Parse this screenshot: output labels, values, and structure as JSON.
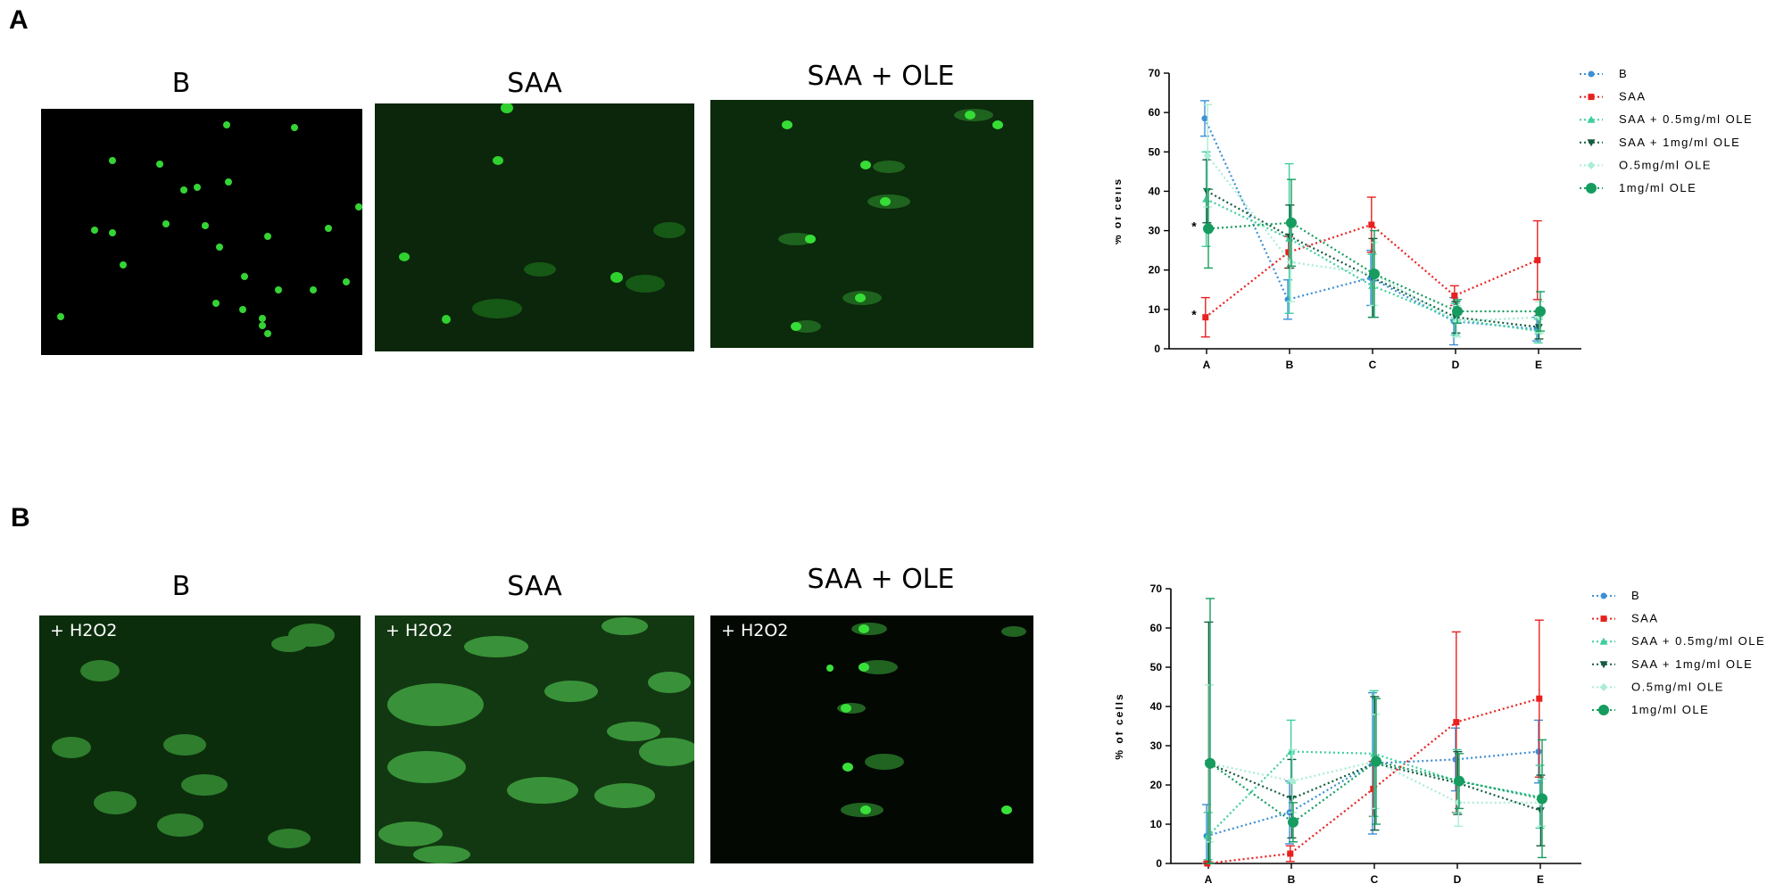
{
  "panels": [
    {
      "letter": "A",
      "images": [
        {
          "title": "B",
          "label": ""
        },
        {
          "title": "SAA",
          "label": ""
        },
        {
          "title": "SAA + OLE",
          "label": ""
        }
      ]
    },
    {
      "letter": "B",
      "images": [
        {
          "title": "B",
          "label": "+ H2O2"
        },
        {
          "title": "SAA",
          "label": "+ H2O2"
        },
        {
          "title": "SAA + OLE",
          "label": "+ H2O2"
        }
      ]
    }
  ],
  "chart_data": [
    {
      "type": "line",
      "xlabel": "",
      "ylabel": "% of cells",
      "categories": [
        "A",
        "B",
        "C",
        "D",
        "E"
      ],
      "ylim": [
        0,
        70
      ],
      "yticks": [
        "0",
        "10",
        "20",
        "30",
        "40",
        "50",
        "60",
        "70"
      ],
      "legend_position": "top-right",
      "annotations": [
        "*",
        "*"
      ],
      "series": [
        {
          "name": "B",
          "color": "#3d8fd6",
          "marker": "circle",
          "values": [
            58.5,
            12.5,
            18,
            7,
            5
          ],
          "errors": [
            4.5,
            5,
            7,
            6,
            3
          ]
        },
        {
          "name": "SAA",
          "color": "#e8201f",
          "marker": "square",
          "values": [
            8,
            24.5,
            31.5,
            13.5,
            22.5
          ],
          "errors": [
            5,
            4,
            7,
            2.5,
            10
          ]
        },
        {
          "name": "SAA + 0.5mg/ml OLE",
          "color": "#3ecf9e",
          "marker": "triangle-up",
          "values": [
            38,
            28,
            16,
            7.5,
            4.5
          ],
          "errors": [
            12,
            19,
            8,
            4,
            3
          ]
        },
        {
          "name": "SAA + 1mg/ml OLE",
          "color": "#155b3f",
          "marker": "triangle-down",
          "values": [
            40,
            28.5,
            18,
            8,
            5.5
          ],
          "errors": [
            8,
            8,
            10,
            4,
            3
          ]
        },
        {
          "name": "O.5mg/ml OLE",
          "color": "#a9edd4",
          "marker": "diamond",
          "values": [
            49,
            22,
            19,
            7,
            8
          ],
          "errors": [
            13,
            10,
            8,
            4,
            4
          ]
        },
        {
          "name": "1mg/ml OLE",
          "color": "#159c5e",
          "marker": "big-circle",
          "values": [
            30.5,
            32,
            19,
            9.5,
            9.5
          ],
          "errors": [
            10,
            11,
            11,
            3,
            5
          ]
        }
      ]
    },
    {
      "type": "line",
      "xlabel": "",
      "ylabel": "% of cells",
      "categories": [
        "A",
        "B",
        "C",
        "D",
        "E"
      ],
      "ylim": [
        0,
        70
      ],
      "yticks": [
        "0",
        "10",
        "20",
        "30",
        "40",
        "50",
        "60",
        "70"
      ],
      "legend_position": "top-right",
      "annotations": [],
      "series": [
        {
          "name": "B",
          "color": "#3d8fd6",
          "marker": "circle",
          "values": [
            7,
            13,
            25.5,
            26.5,
            28.5
          ],
          "errors": [
            8,
            8,
            18,
            8,
            8
          ]
        },
        {
          "name": "SAA",
          "color": "#e8201f",
          "marker": "square",
          "values": [
            0,
            2.5,
            19,
            36,
            42
          ],
          "errors": [
            0.5,
            2,
            7,
            23,
            20
          ]
        },
        {
          "name": "SAA + 0.5mg/ml OLE",
          "color": "#3ecf9e",
          "marker": "triangle-up",
          "values": [
            7,
            28.5,
            28,
            21,
            17
          ],
          "errors": [
            6,
            8,
            16,
            8,
            8
          ]
        },
        {
          "name": "SAA + 1mg/ml OLE",
          "color": "#155b3f",
          "marker": "triangle-down",
          "values": [
            25.5,
            16.5,
            25.5,
            20.5,
            13.5
          ],
          "errors": [
            36,
            10,
            17,
            8,
            9
          ]
        },
        {
          "name": "O.5mg/ml OLE",
          "color": "#a9edd4",
          "marker": "diamond",
          "values": [
            25.5,
            21,
            26,
            15.5,
            15.5
          ],
          "errors": [
            20,
            8,
            12,
            6,
            6
          ]
        },
        {
          "name": "1mg/ml OLE",
          "color": "#159c5e",
          "marker": "big-circle",
          "values": [
            25.5,
            10.5,
            26,
            21,
            16.5
          ],
          "errors": [
            42,
            5,
            16,
            7,
            15
          ]
        }
      ]
    }
  ]
}
